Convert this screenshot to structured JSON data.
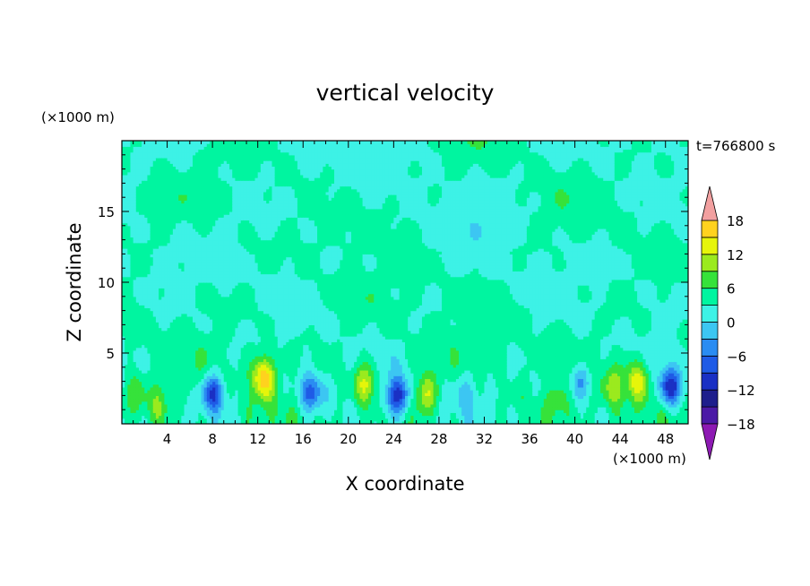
{
  "chart_data": {
    "type": "heatmap",
    "title": "vertical velocity",
    "xlabel": "X coordinate",
    "ylabel": "Z coordinate",
    "x_unit_label": "(×1000 m)",
    "y_unit_label": "(×1000 m)",
    "time_label": "t=766800 s",
    "xlim": [
      0,
      50
    ],
    "ylim": [
      0,
      20
    ],
    "x_ticks": [
      4,
      8,
      12,
      16,
      20,
      24,
      28,
      32,
      36,
      40,
      44,
      48
    ],
    "y_ticks": [
      5,
      10,
      15
    ],
    "colorbar": {
      "min": -21,
      "max": 21,
      "step": 3,
      "tick_values": [
        18,
        12,
        6,
        0,
        -6,
        -12,
        -18
      ],
      "tick_labels": [
        "18",
        "12",
        "6",
        "0",
        "−6",
        "−12",
        "−18"
      ],
      "extend": "both",
      "colors": [
        "#8d1ab3",
        "#4b1aa6",
        "#1e1e8c",
        "#1a30c4",
        "#1f5be6",
        "#2a8cf2",
        "#3cc6f2",
        "#3df2e6",
        "#00f5a0",
        "#36e23a",
        "#9bea1e",
        "#e6f50a",
        "#ffd21e",
        "#ffa01e",
        "#ff6e1e",
        "#f0321e",
        "#d21e14",
        "#f2a0a0"
      ]
    },
    "updrafts": [
      {
        "x": 1.0,
        "z": 2.3,
        "peak": 3
      },
      {
        "x": 3.2,
        "z": 1.6,
        "peak": 4
      },
      {
        "x": 12.5,
        "z": 3.4,
        "peak": 13
      },
      {
        "x": 21.5,
        "z": 2.8,
        "peak": 9
      },
      {
        "x": 26.8,
        "z": 2.2,
        "peak": 8
      },
      {
        "x": 38.5,
        "z": 1.2,
        "peak": 2
      },
      {
        "x": 43.5,
        "z": 2.5,
        "peak": 6
      },
      {
        "x": 45.5,
        "z": 3.2,
        "peak": 9
      }
    ],
    "downdrafts": [
      {
        "x": 8.1,
        "z": 2.2,
        "peak": -12
      },
      {
        "x": 16.7,
        "z": 2.3,
        "peak": -11
      },
      {
        "x": 24.3,
        "z": 2.0,
        "peak": -13
      },
      {
        "x": 30.5,
        "z": 2.2,
        "peak": -3
      },
      {
        "x": 40.5,
        "z": 3.2,
        "peak": -6
      },
      {
        "x": 48.5,
        "z": 2.6,
        "peak": -13
      }
    ]
  }
}
